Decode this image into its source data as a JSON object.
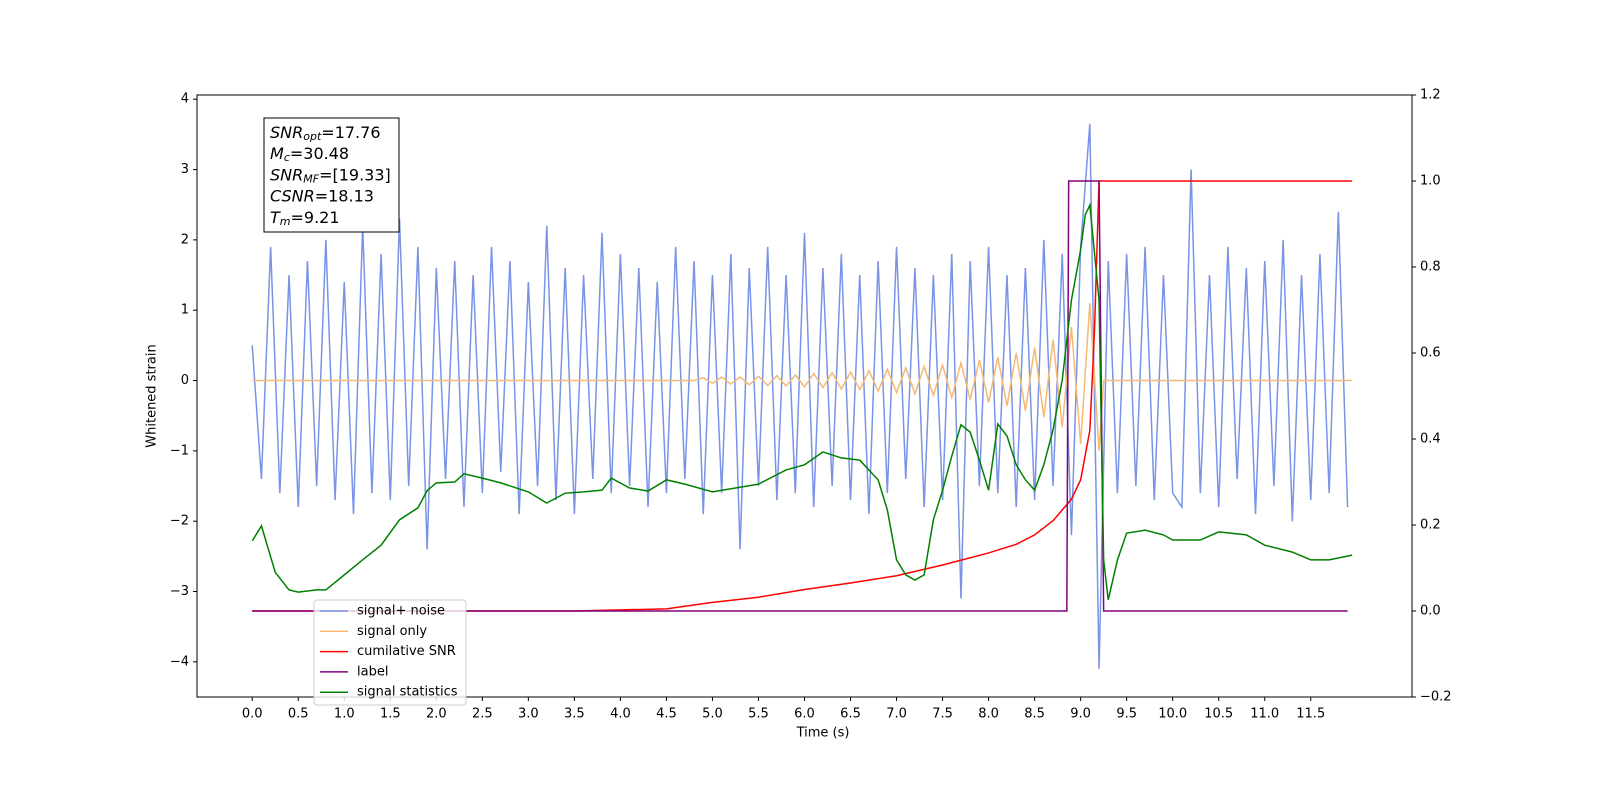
{
  "chart_data": {
    "type": "line",
    "xlabel": "Time (s)",
    "ylabel": "Whitened strain",
    "xlim": [
      -0.6,
      12.6
    ],
    "ylim": [
      -4.5,
      4.06
    ],
    "y2lim": [
      -0.2,
      1.2
    ],
    "xticks": [
      {
        "value": 0,
        "label": "0.0"
      },
      0.5,
      {
        "value": 1,
        "label": "1.0"
      },
      1.5,
      {
        "value": 2,
        "label": "2.0"
      },
      2.5,
      {
        "value": 3,
        "label": "3.0"
      },
      3.5,
      {
        "value": 4,
        "label": "4.0"
      },
      4.5,
      {
        "value": 5,
        "label": "5.0"
      },
      5.5,
      {
        "value": 6,
        "label": "6.0"
      },
      6.5,
      {
        "value": 7,
        "label": "7.0"
      },
      7.5,
      {
        "value": 8,
        "label": "8.0"
      },
      8.5,
      {
        "value": 9,
        "label": "9.0"
      },
      9.5,
      {
        "value": 10,
        "label": "10.0"
      },
      10.5,
      {
        "value": 11,
        "label": "11.0"
      },
      11.5
    ],
    "yticks": [
      {
        "value": -4,
        "label": "−4"
      },
      {
        "value": -3,
        "label": "−3"
      },
      {
        "value": -2,
        "label": "−2"
      },
      {
        "value": -1,
        "label": "−1"
      },
      0,
      1,
      2,
      3,
      4
    ],
    "y2ticks": [
      {
        "value": -0.2,
        "label": "−0.2"
      },
      {
        "value": 0,
        "label": "0.0"
      },
      0.2,
      0.4,
      0.6,
      0.8,
      {
        "value": 1,
        "label": "1.0"
      },
      1.2
    ],
    "annotations": [
      {
        "name": "SNR",
        "subscript": "opt",
        "text": "=17.76"
      },
      {
        "name": "M",
        "subscript": "c",
        "text": "=30.48"
      },
      {
        "name": "SNR",
        "subscript": "MF",
        "text": "=[19.33]"
      },
      {
        "name": "CSNR",
        "text": "=18.13"
      },
      {
        "name": "T",
        "subscript": "m",
        "text": "=9.21"
      }
    ],
    "series": [
      {
        "name": "signal+ noise",
        "color": "#7893e8",
        "x": [
          0,
          0.1,
          0.2,
          0.3,
          0.4,
          0.5,
          0.6,
          0.7,
          0.8,
          0.9,
          1,
          1.1,
          1.2,
          1.3,
          1.4,
          1.5,
          1.6,
          1.7,
          1.8,
          1.9,
          2,
          2.1,
          2.2,
          2.3,
          2.4,
          2.5,
          2.6,
          2.7,
          2.8,
          2.9,
          3,
          3.1,
          3.2,
          3.3,
          3.4,
          3.5,
          3.6,
          3.7,
          3.8,
          3.9,
          4,
          4.1,
          4.2,
          4.3,
          4.4,
          4.5,
          4.6,
          4.7,
          4.8,
          4.9,
          5,
          5.1,
          5.2,
          5.3,
          5.4,
          5.5,
          5.6,
          5.7,
          5.8,
          5.9,
          6,
          6.1,
          6.2,
          6.3,
          6.4,
          6.5,
          6.6,
          6.7,
          6.8,
          6.9,
          7,
          7.1,
          7.2,
          7.3,
          7.4,
          7.5,
          7.6,
          7.7,
          7.8,
          7.9,
          8,
          8.1,
          8.2,
          8.3,
          8.4,
          8.5,
          8.6,
          8.7,
          8.8,
          8.9,
          9,
          9.1,
          9.2,
          9.3,
          9.4,
          9.5,
          9.6,
          9.7,
          9.8,
          9.9,
          10,
          10.1,
          10.2,
          10.3,
          10.4,
          10.5,
          10.6,
          10.7,
          10.8,
          10.9,
          11,
          11.1,
          11.2,
          11.3,
          11.4,
          11.5,
          11.6,
          11.7,
          11.8,
          11.9
        ],
        "values": [
          0.5,
          -1.4,
          1.9,
          -1.6,
          1.5,
          -1.8,
          1.7,
          -1.5,
          2.0,
          -1.7,
          1.4,
          -1.9,
          2.2,
          -1.6,
          1.8,
          -1.7,
          2.3,
          -1.5,
          1.9,
          -2.4,
          1.6,
          -1.4,
          1.7,
          -1.8,
          1.5,
          -1.6,
          1.9,
          -1.3,
          1.7,
          -1.9,
          1.4,
          -1.5,
          2.2,
          -1.7,
          1.6,
          -1.9,
          1.5,
          -1.4,
          2.1,
          -1.6,
          1.8,
          -1.5,
          1.6,
          -1.8,
          1.4,
          -1.6,
          1.9,
          -1.4,
          1.7,
          -1.9,
          1.5,
          -1.6,
          1.8,
          -2.4,
          1.6,
          -1.5,
          1.9,
          -1.7,
          1.5,
          -1.6,
          2.1,
          -1.8,
          1.6,
          -1.5,
          1.8,
          -1.7,
          1.5,
          -1.9,
          1.7,
          -1.6,
          1.9,
          -1.4,
          1.6,
          -1.8,
          1.5,
          -1.7,
          1.8,
          -3.1,
          1.7,
          -1.5,
          1.9,
          -1.6,
          1.5,
          -1.8,
          1.6,
          -1.7,
          2.0,
          -1.5,
          1.8,
          -2.2,
          1.9,
          3.65,
          -4.1,
          1.7,
          -1.6,
          1.8,
          -1.5,
          1.9,
          -1.7,
          1.5,
          -1.6,
          -1.8,
          3.0,
          -1.6,
          1.5,
          -1.8,
          1.9,
          -1.4,
          1.6,
          -1.9,
          1.7,
          -1.5,
          2.0,
          -2.0,
          1.5,
          -1.7,
          1.8,
          -1.6,
          2.4,
          -1.8
        ]
      },
      {
        "name": "signal only",
        "color": "#f5b974",
        "x": [
          0,
          4.8,
          4.9,
          5,
          5.1,
          5.2,
          5.3,
          5.4,
          5.5,
          5.6,
          5.7,
          5.8,
          5.9,
          6,
          6.1,
          6.2,
          6.3,
          6.4,
          6.5,
          6.6,
          6.7,
          6.8,
          6.9,
          7,
          7.1,
          7.2,
          7.3,
          7.4,
          7.5,
          7.6,
          7.7,
          7.8,
          7.9,
          8,
          8.1,
          8.2,
          8.3,
          8.4,
          8.5,
          8.6,
          8.7,
          8.8,
          8.9,
          9,
          9.1,
          9.2,
          9.25,
          11.95
        ],
        "values": [
          0,
          0,
          0.04,
          -0.04,
          0.05,
          -0.05,
          0.05,
          -0.06,
          0.06,
          -0.07,
          0.07,
          -0.08,
          0.08,
          -0.09,
          0.1,
          -0.1,
          0.11,
          -0.12,
          0.12,
          -0.13,
          0.14,
          -0.15,
          0.16,
          -0.17,
          0.18,
          -0.19,
          0.2,
          -0.21,
          0.22,
          -0.24,
          0.25,
          -0.27,
          0.29,
          -0.31,
          0.33,
          -0.36,
          0.39,
          -0.43,
          0.47,
          -0.52,
          0.58,
          -0.66,
          0.76,
          -0.9,
          1.1,
          -1.0,
          0,
          0
        ]
      },
      {
        "name": "cumilative SNR",
        "color": "#ff0000",
        "axis": "y2",
        "x": [
          0,
          3.5,
          4.5,
          5,
          5.5,
          6,
          6.5,
          7,
          7.5,
          8,
          8.3,
          8.5,
          8.7,
          8.9,
          9,
          9.1,
          9.15,
          9.2,
          11.95
        ],
        "values": [
          0,
          0,
          0.005,
          0.02,
          0.032,
          0.05,
          0.065,
          0.082,
          0.107,
          0.135,
          0.155,
          0.177,
          0.21,
          0.26,
          0.305,
          0.42,
          0.65,
          1.0,
          1.0
        ]
      },
      {
        "name": "label",
        "color": "#800080",
        "axis": "y2",
        "x": [
          0,
          8.85,
          8.87,
          9.2,
          9.25,
          11.9
        ],
        "values": [
          0,
          0,
          1,
          1,
          0,
          0
        ]
      },
      {
        "name": "signal statistics",
        "color": "#008000",
        "axis": "y2",
        "x": [
          0,
          0.1,
          0.25,
          0.4,
          0.5,
          0.7,
          0.8,
          1,
          1.2,
          1.4,
          1.6,
          1.8,
          1.9,
          2,
          2.2,
          2.3,
          2.5,
          2.7,
          3,
          3.2,
          3.4,
          3.6,
          3.8,
          3.9,
          4.1,
          4.3,
          4.5,
          4.7,
          5,
          5.5,
          5.8,
          6,
          6.2,
          6.4,
          6.6,
          6.8,
          6.9,
          7,
          7.1,
          7.2,
          7.3,
          7.4,
          7.5,
          7.6,
          7.7,
          7.8,
          7.9,
          8,
          8.1,
          8.2,
          8.3,
          8.4,
          8.5,
          8.6,
          8.7,
          8.8,
          8.9,
          9,
          9.05,
          9.1,
          9.2,
          9.25,
          9.3,
          9.4,
          9.5,
          9.7,
          9.9,
          10,
          10.3,
          10.5,
          10.8,
          11,
          11.3,
          11.5,
          11.7,
          11.95
        ],
        "values": [
          0.163,
          0.198,
          0.09,
          0.049,
          0.044,
          0.049,
          0.049,
          0.084,
          0.119,
          0.153,
          0.212,
          0.24,
          0.28,
          0.298,
          0.3,
          0.319,
          0.309,
          0.298,
          0.277,
          0.251,
          0.274,
          0.277,
          0.281,
          0.309,
          0.286,
          0.279,
          0.305,
          0.295,
          0.277,
          0.295,
          0.328,
          0.34,
          0.37,
          0.356,
          0.351,
          0.305,
          0.235,
          0.119,
          0.084,
          0.072,
          0.084,
          0.212,
          0.281,
          0.36,
          0.433,
          0.416,
          0.351,
          0.281,
          0.435,
          0.407,
          0.34,
          0.305,
          0.281,
          0.34,
          0.421,
          0.537,
          0.723,
          0.84,
          0.921,
          0.944,
          0.723,
          0.119,
          0.026,
          0.119,
          0.181,
          0.188,
          0.177,
          0.165,
          0.165,
          0.184,
          0.177,
          0.153,
          0.137,
          0.119,
          0.119,
          0.13
        ]
      }
    ],
    "legend": "lower left"
  }
}
